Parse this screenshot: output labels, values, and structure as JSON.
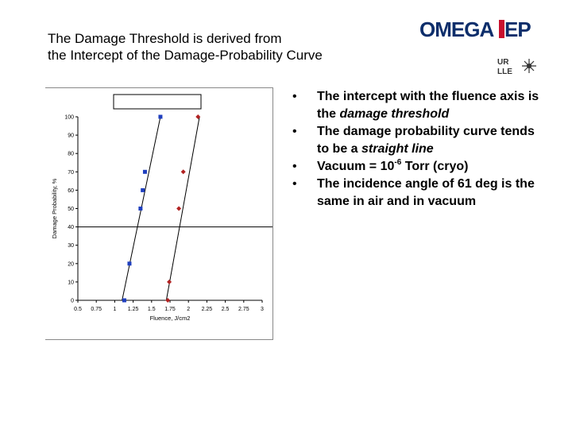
{
  "slide": {
    "title_line1": "The Damage Threshold is derived from",
    "title_line2": "the Intercept of the Damage-Probability Curve"
  },
  "branding": {
    "logo_part1": "OMEGA",
    "logo_part2": "EP",
    "logo_color": "#0d2e6b",
    "accent_color": "#c8102e",
    "ur_text": "UR",
    "lle_text": "LLE"
  },
  "bullets": [
    {
      "pre": "The intercept with the fluence axis is the ",
      "em": "damage threshold",
      "post": ""
    },
    {
      "pre": "The damage probability curve tends to be a ",
      "em": "straight line",
      "post": ""
    },
    {
      "pre": "Vacuum = 10",
      "sup": "-6",
      "post": " Torr (cryo)"
    },
    {
      "pre": "The incidence angle of 61 deg is the same in air and in vacuum"
    }
  ],
  "bullet_glyph": "•",
  "chart_data": {
    "type": "scatter",
    "title": "",
    "xlabel": "Fluence, J/cm2",
    "ylabel": "Damage Probability, %",
    "xlim": [
      0.5,
      3
    ],
    "ylim": [
      0,
      100
    ],
    "x_ticks": [
      "0.5",
      "0.75",
      "1",
      "1.25",
      "1.5",
      "1.75",
      "2",
      "2.25",
      "2.5",
      "2.75",
      "3"
    ],
    "y_ticks": [
      "0",
      "10",
      "20",
      "30",
      "40",
      "50",
      "60",
      "70",
      "80",
      "90",
      "100"
    ],
    "grid": false,
    "reference_line_y": 40,
    "series": [
      {
        "marker": "square",
        "color": "#1f3fbf",
        "x": [
          1.13,
          1.2,
          1.35,
          1.38,
          1.41,
          1.62
        ],
        "y": [
          0,
          20,
          50,
          60,
          70,
          100
        ],
        "fit": [
          [
            1.1,
            0
          ],
          [
            1.62,
            100
          ]
        ]
      },
      {
        "marker": "diamond",
        "color": "#b22222",
        "x": [
          1.72,
          1.74,
          1.87,
          1.93,
          2.13
        ],
        "y": [
          0,
          10,
          50,
          70,
          100
        ],
        "fit": [
          [
            1.7,
            0
          ],
          [
            2.15,
            100
          ]
        ]
      }
    ]
  }
}
